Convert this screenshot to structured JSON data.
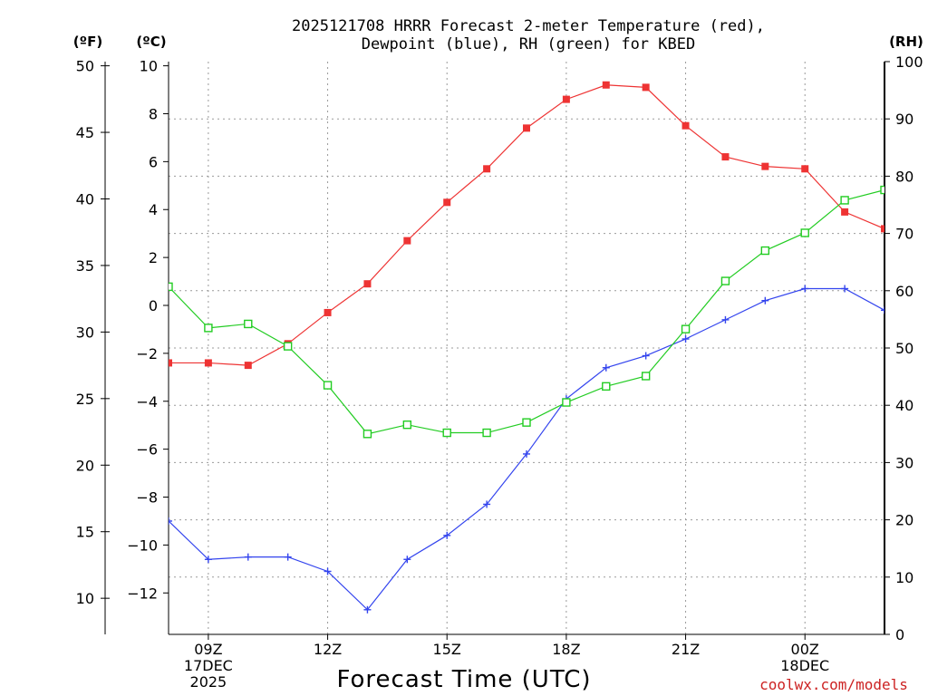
{
  "chart_data": {
    "type": "line",
    "title": [
      "2025121708 HRRR Forecast 2-meter Temperature (red),",
      "Dewpoint (blue), RH (green) for KBED"
    ],
    "units": {
      "fahrenheit": "(ºF)",
      "celsius": "(ºC)",
      "rh": "(RH)"
    },
    "x": [
      8,
      9,
      10,
      11,
      12,
      13,
      14,
      15,
      16,
      17,
      18,
      19,
      20,
      21,
      22,
      23,
      24,
      25,
      26
    ],
    "xlim": [
      8,
      26
    ],
    "x_ticks": [
      {
        "x": 9,
        "lines": [
          "09Z",
          "17DEC",
          "2025"
        ]
      },
      {
        "x": 12,
        "lines": [
          "12Z"
        ]
      },
      {
        "x": 15,
        "lines": [
          "15Z"
        ]
      },
      {
        "x": 18,
        "lines": [
          "18Z"
        ]
      },
      {
        "x": 21,
        "lines": [
          "21Z"
        ]
      },
      {
        "x": 24,
        "lines": [
          "00Z",
          "18DEC"
        ]
      }
    ],
    "xlabel": "Forecast Time (UTC)",
    "celsius_axis": {
      "ylim": [
        -13.5,
        10.2
      ],
      "ticks": [
        "10",
        "8",
        "6",
        "4",
        "2",
        "0",
        "−2",
        "−4",
        "−6",
        "−8",
        "−10",
        "−12"
      ]
    },
    "fahrenheit_axis": {
      "ticks": [
        "50",
        "45",
        "40",
        "35",
        "30",
        "25",
        "20",
        "15",
        "10"
      ]
    },
    "rh_axis": {
      "ylim": [
        0,
        100
      ],
      "ticks": [
        "100",
        "90",
        "80",
        "70",
        "60",
        "50",
        "40",
        "30",
        "20",
        "10",
        "0"
      ]
    },
    "series": [
      {
        "name": "Temperature",
        "axis": "celsius",
        "color": "#ee3333",
        "marker": "filled-square",
        "values": [
          -2.4,
          -2.4,
          -2.5,
          -1.6,
          -0.3,
          0.9,
          2.7,
          4.3,
          5.7,
          7.4,
          8.6,
          9.2,
          9.1,
          7.5,
          6.2,
          5.8,
          5.7,
          3.9,
          3.2
        ]
      },
      {
        "name": "Dewpoint",
        "axis": "celsius",
        "color": "#3344ee",
        "marker": "plus",
        "values": [
          -9.0,
          -10.6,
          -10.5,
          -10.5,
          -11.1,
          -12.7,
          -10.6,
          -9.6,
          -8.3,
          -6.2,
          -3.9,
          -2.6,
          -2.1,
          -1.4,
          -0.6,
          0.2,
          0.7,
          0.7,
          -0.2
        ]
      },
      {
        "name": "RH",
        "axis": "rh",
        "color": "#22cc22",
        "marker": "open-square",
        "values": [
          60.7,
          53.5,
          54.2,
          50.3,
          43.5,
          35.0,
          36.6,
          35.2,
          35.2,
          37.0,
          40.5,
          43.3,
          45.1,
          53.3,
          61.7,
          67.0,
          70.1,
          75.8,
          77.6
        ]
      }
    ]
  },
  "credit": "coolwx.com/models",
  "credit_color": "#cc2222"
}
